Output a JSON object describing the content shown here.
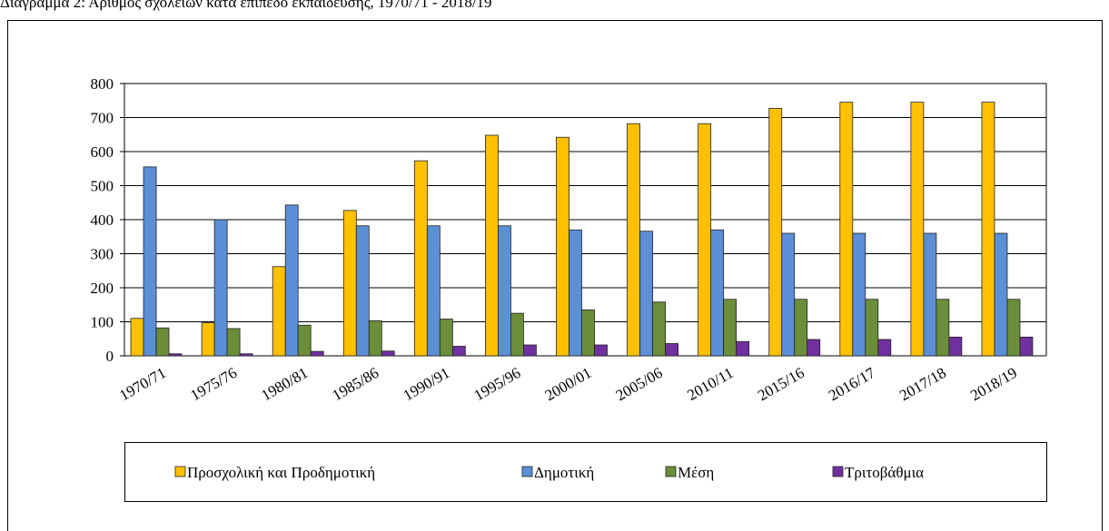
{
  "chart_data": {
    "type": "bar",
    "title": "Διάγραμμα 2: Αριθμός σχολείων κατά επίπεδο εκπαίδευσης, 1970/71 - 2018/19",
    "categories": [
      "1970/71",
      "1975/76",
      "1980/81",
      "1985/86",
      "1990/91",
      "1995/96",
      "2000/01",
      "2005/06",
      "2010/11",
      "2015/16",
      "2016/17",
      "2017/18",
      "2018/19"
    ],
    "series": [
      {
        "name": "Προσχολική και Προδημοτική",
        "color": "#ffc000",
        "values": [
          110,
          97,
          262,
          427,
          573,
          648,
          642,
          682,
          682,
          727,
          745,
          745,
          745
        ]
      },
      {
        "name": "Δημοτική",
        "color": "#5b8fd6",
        "values": [
          555,
          400,
          443,
          382,
          382,
          382,
          370,
          366,
          370,
          360,
          360,
          360,
          360
        ]
      },
      {
        "name": "Μέση",
        "color": "#6b8e3a",
        "values": [
          82,
          80,
          90,
          103,
          108,
          125,
          135,
          158,
          166,
          166,
          166,
          166,
          166
        ]
      },
      {
        "name": "Τριτοβάθμια",
        "color": "#7030a0",
        "values": [
          6,
          6,
          13,
          14,
          28,
          32,
          32,
          36,
          42,
          48,
          48,
          55,
          55
        ]
      }
    ],
    "ylim": [
      0,
      800
    ],
    "yticks": [
      0,
      100,
      200,
      300,
      400,
      500,
      600,
      700,
      800
    ],
    "grid": true,
    "legend": "bottom"
  }
}
